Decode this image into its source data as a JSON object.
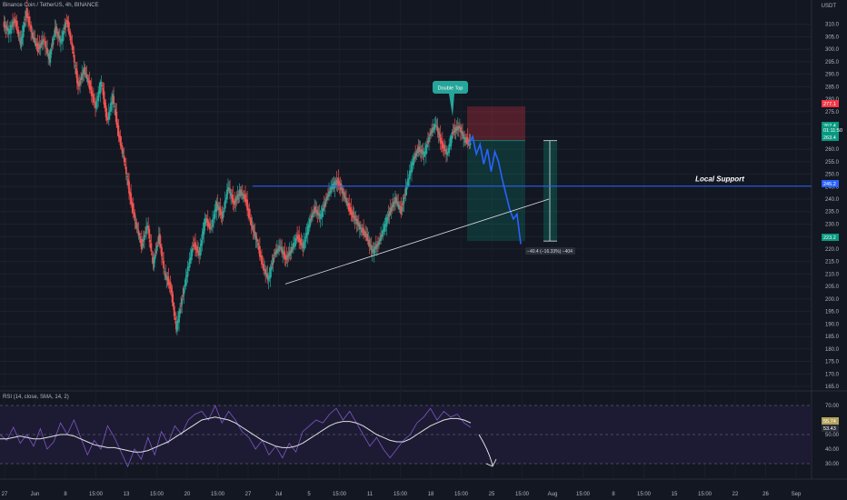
{
  "header": {
    "title": "Binance Coin / TetherUS, 4h, BINANCE",
    "unit": "USDT"
  },
  "rsi": {
    "label": "RSI (14, close, SMA, 14, 2)",
    "levels": [
      70,
      50,
      30
    ],
    "ticks": [
      "70.00",
      "60.00",
      "50.00",
      "40.00",
      "30.00"
    ],
    "badges": [
      "55.74",
      "53.43"
    ]
  },
  "annotations": {
    "pattern": "Double Top",
    "support": "Local Support",
    "measure": "−40.4 (−16.33%) −404"
  },
  "price_badges": [
    {
      "text": "277.1",
      "color": "#f23645"
    },
    {
      "text": "262.4",
      "color": "#089981"
    },
    {
      "text": "01:11:50",
      "color": "#089981"
    },
    {
      "text": "263.4",
      "color": "#089981"
    },
    {
      "text": "245.2",
      "color": "#2962ff"
    },
    {
      "text": "223.2",
      "color": "#089981"
    }
  ],
  "colors": {
    "up": "#26a69a",
    "down": "#ef5350",
    "projection": "#2962ff",
    "support": "#2962ff",
    "rsi_line": "#7e57c2",
    "rsi_ma": "#e0e0e0",
    "rsi_band": "#1d1b34"
  },
  "chart_data": [
    {
      "type": "line",
      "title": "Binance Coin / TetherUS, 4h, BINANCE",
      "ylabel": "USDT",
      "ylim": [
        165,
        315
      ],
      "yticks": [
        165,
        170,
        175,
        180,
        185,
        190,
        195,
        200,
        205,
        210,
        215,
        220,
        225,
        230,
        235,
        240,
        245,
        250,
        255,
        260,
        265,
        270,
        275,
        280,
        285,
        290,
        295,
        300,
        305,
        310
      ],
      "xticks": [
        "27",
        "Jun",
        "8",
        "15:00",
        "13",
        "15:00",
        "20",
        "15:00",
        "27",
        "Jul",
        "5",
        "15:00",
        "11",
        "15:00",
        "18",
        "15:00",
        "25",
        "15:00",
        "Aug",
        "15:00",
        "8",
        "15:00",
        "15",
        "15:00",
        "22",
        "26",
        "Sep"
      ],
      "series": [
        {
          "values": [
            310,
            307,
            312,
            302,
            315,
            306,
            300,
            304,
            296,
            308,
            303,
            312,
            300,
            285,
            292,
            285,
            277,
            287,
            271,
            281,
            266,
            255,
            241,
            230,
            221,
            230,
            214,
            225,
            210,
            205,
            188,
            200,
            212,
            222,
            218,
            232,
            228,
            238,
            233,
            245,
            238,
            243,
            240,
            230,
            223,
            213,
            208,
            218,
            221,
            216,
            220,
            225,
            221,
            230,
            236,
            233,
            240,
            245,
            247,
            242,
            236,
            232,
            228,
            225,
            219,
            222,
            228,
            235,
            240,
            235,
            246,
            255,
            260,
            258,
            266,
            270,
            262,
            258,
            267,
            269,
            264,
            262
          ]
        },
        {
          "name": "",
          "values": [
            262,
            265,
            258,
            262,
            254,
            260,
            251,
            259,
            255,
            248,
            242,
            236,
            232,
            234,
            222
          ]
        }
      ],
      "support_level": 245.2,
      "trendline": {
        "start": [
          0,
          206
        ],
        "end": [
          1,
          240
        ]
      },
      "trade": {
        "entry": 263.4,
        "stop": 277.1,
        "target": 223.2
      }
    },
    {
      "type": "line",
      "title": "RSI (14, close, SMA, 14, 2)",
      "ylim": [
        25,
        75
      ],
      "series": [
        {
          "values": [
            50,
            46,
            55,
            44,
            50,
            42,
            54,
            40,
            45,
            58,
            50,
            60,
            48,
            36,
            46,
            40,
            56,
            48,
            38,
            28,
            40,
            33,
            48,
            36,
            52,
            44,
            56,
            50,
            60,
            64,
            66,
            60,
            70,
            58,
            66,
            60,
            52,
            48,
            40,
            46,
            36,
            42,
            34,
            44,
            38,
            52,
            56,
            60,
            58,
            64,
            68,
            60,
            66,
            58,
            50,
            42,
            48,
            40,
            34,
            40,
            46,
            50,
            58,
            62,
            68,
            60,
            66,
            62,
            64,
            58,
            55
          ]
        },
        {
          "values": [
            47,
            47,
            48,
            49,
            48,
            47,
            47,
            48,
            49,
            50,
            50,
            49,
            47,
            45,
            43,
            42,
            41,
            41,
            40,
            39,
            38,
            38,
            39,
            41,
            43,
            45,
            48,
            51,
            54,
            57,
            60,
            61,
            62,
            61,
            60,
            58,
            55,
            52,
            49,
            46,
            44,
            42,
            41,
            41,
            42,
            44,
            47,
            50,
            53,
            56,
            58,
            59,
            59,
            58,
            56,
            53,
            50,
            48,
            46,
            45,
            45,
            47,
            50,
            53,
            56,
            58,
            60,
            61,
            61,
            60,
            58
          ]
        }
      ]
    }
  ]
}
